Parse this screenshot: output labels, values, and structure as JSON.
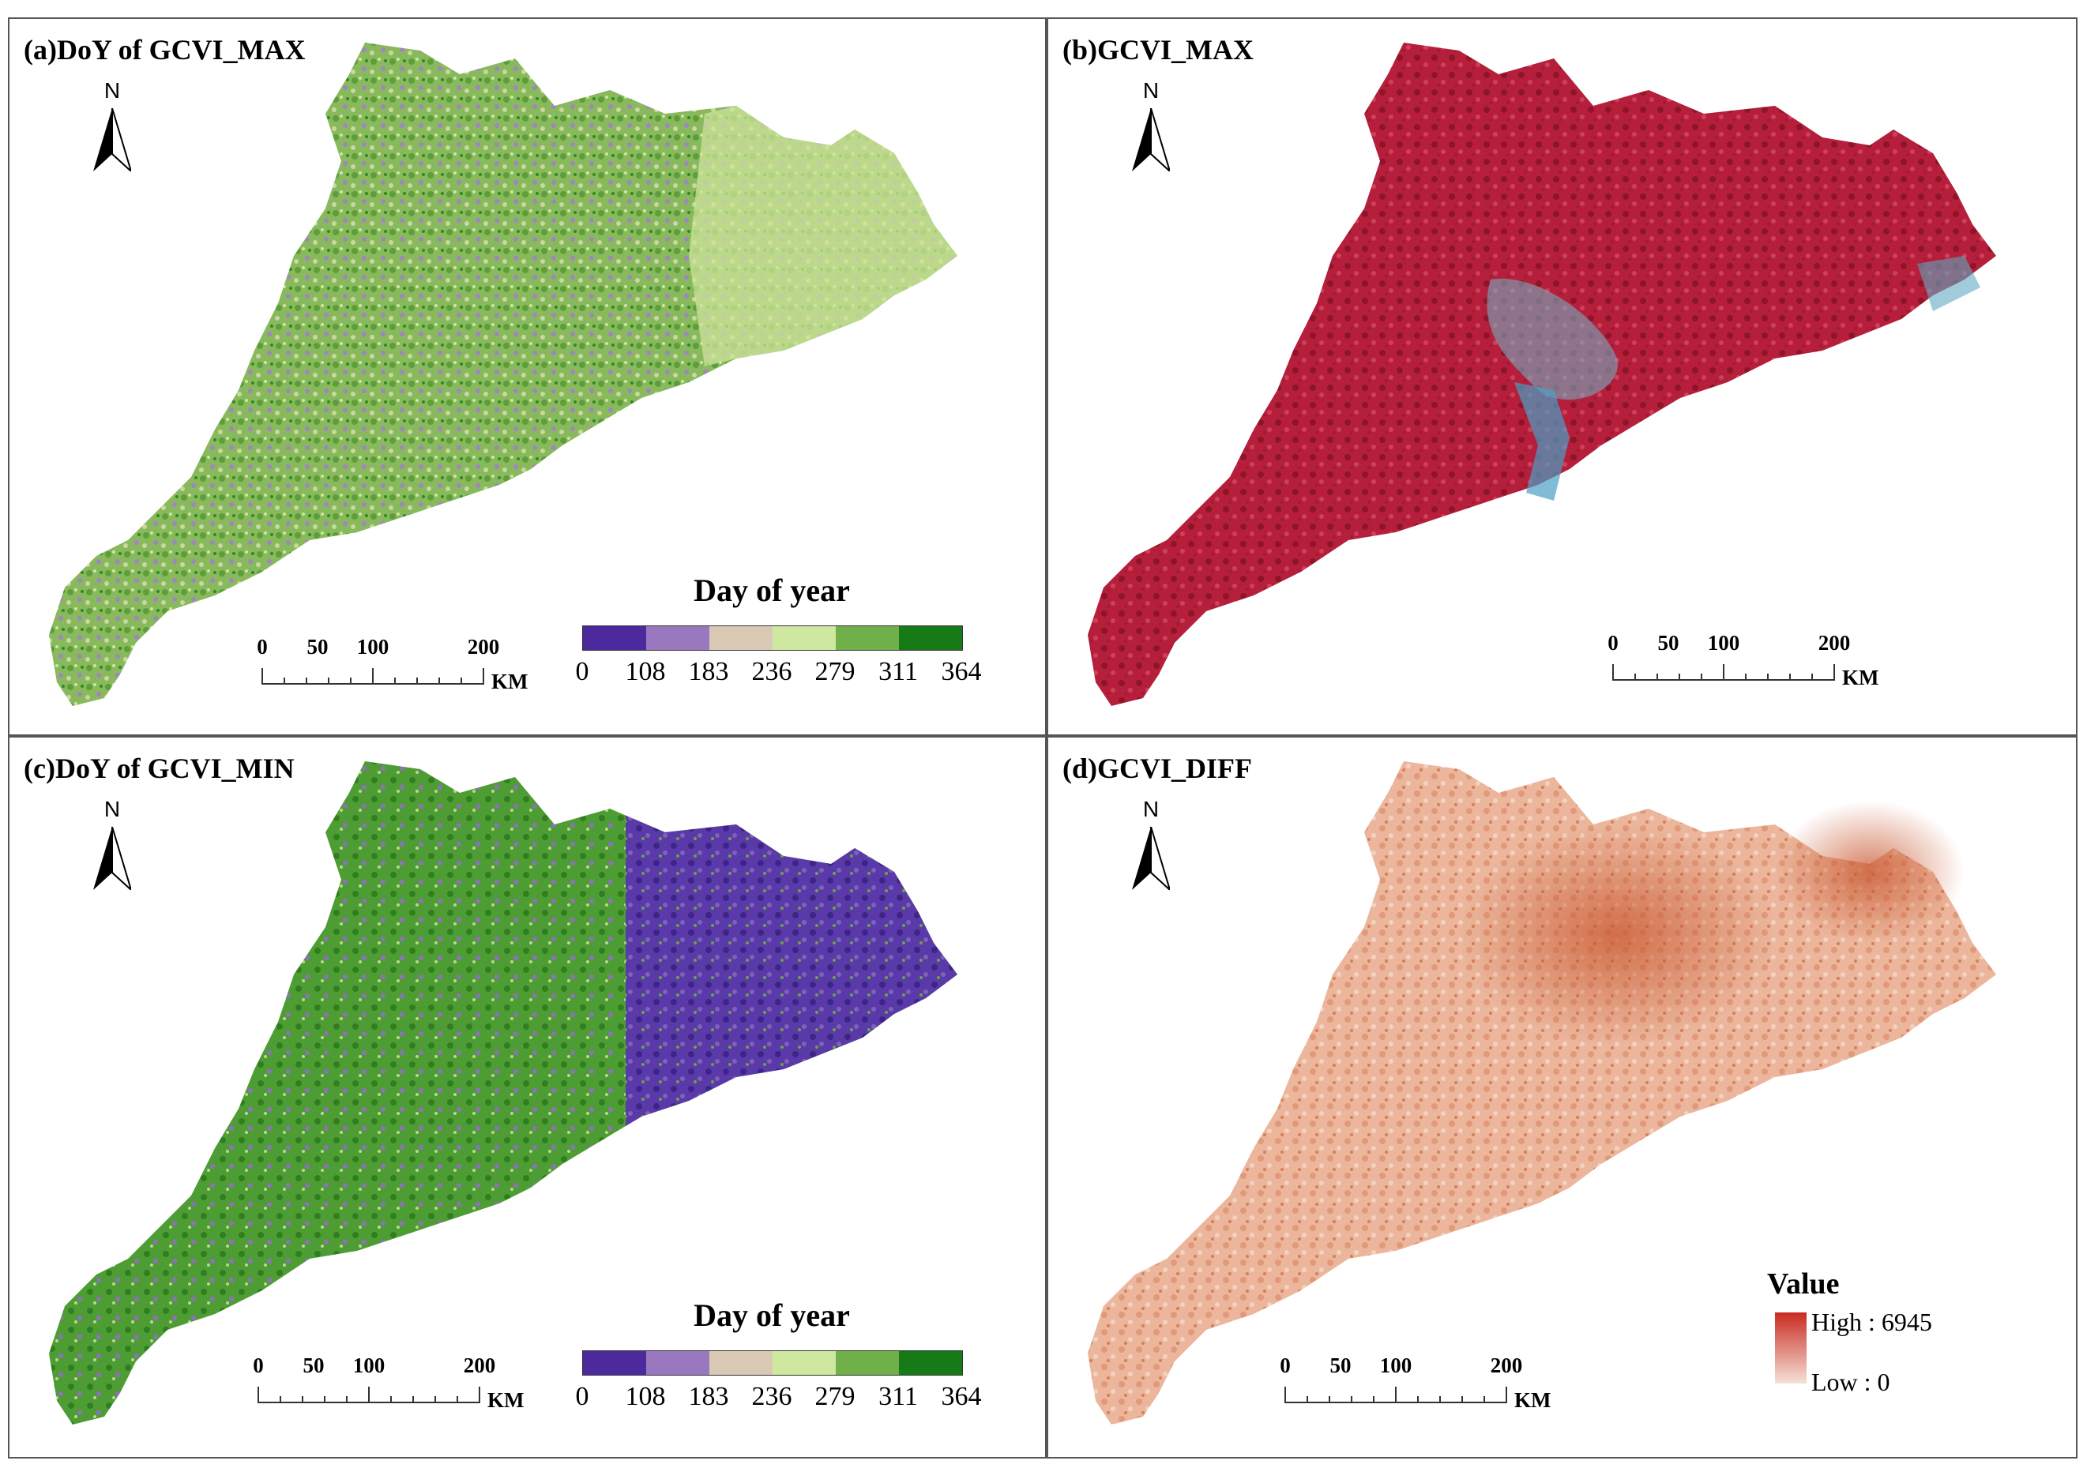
{
  "colors": {
    "doy": [
      "#4c2a9e",
      "#9a78c0",
      "#d9c9b4",
      "#cfe8a0",
      "#6fb04a",
      "#167a16"
    ],
    "gcvi_max_fill": "#b81e3a",
    "gcvi_max_urban": "#6fb8cc",
    "gcvi_diff_fill": "#eab399",
    "gcvi_diff_dark": "#c8562e",
    "diff_high": "#c82b22",
    "diff_low": "#f6e1d6",
    "doy_max_base": "#84b859",
    "doy_min_west": "#4b9a32",
    "doy_min_east": "#5a3aa8"
  },
  "north_label": "N",
  "scale": {
    "ticks": [
      "0",
      "50",
      "100",
      "200"
    ],
    "unit": "KM"
  },
  "legend_doy": {
    "title": "Day of year",
    "ticks": [
      "0",
      "108",
      "183",
      "236",
      "279",
      "311",
      "364"
    ]
  },
  "panels": [
    {
      "title": "(a)DoY of GCVI_MAX"
    },
    {
      "title": "(b)GCVI_MAX"
    },
    {
      "title": "(c)DoY of GCVI_MIN"
    },
    {
      "title": "(d)GCVI_DIFF"
    }
  ],
  "legend_value": {
    "title": "Value",
    "high": "High : 6945",
    "low": "Low : 0"
  }
}
